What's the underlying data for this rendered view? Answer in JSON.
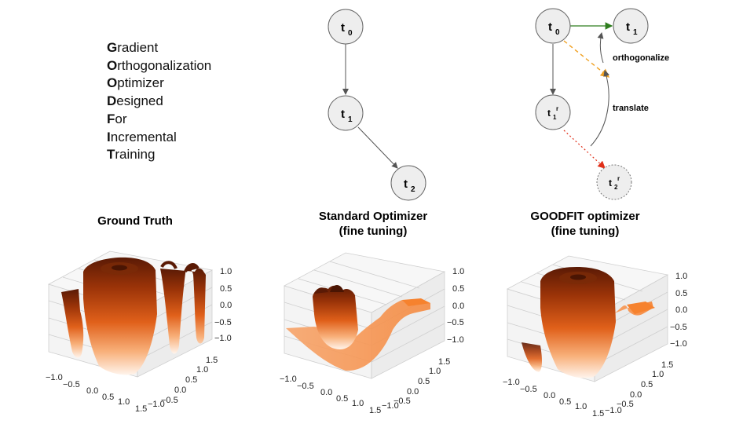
{
  "acronym": [
    {
      "initial": "G",
      "rest": "radient"
    },
    {
      "initial": "O",
      "rest": "rthogonalization"
    },
    {
      "initial": "O",
      "rest": "ptimizer"
    },
    {
      "initial": "D",
      "rest": "esigned"
    },
    {
      "initial": "F",
      "rest": "or"
    },
    {
      "initial": "I",
      "rest": "ncremental"
    },
    {
      "initial": "T",
      "rest": "raining"
    }
  ],
  "diagram_standard": {
    "nodes": [
      {
        "base": "t",
        "sub": "0",
        "sup": ""
      },
      {
        "base": "t",
        "sub": "1",
        "sup": ""
      },
      {
        "base": "t",
        "sub": "2",
        "sup": ""
      }
    ]
  },
  "diagram_goodfit": {
    "nodes": [
      {
        "base": "t",
        "sub": "0",
        "sup": ""
      },
      {
        "base": "t",
        "sub": "1",
        "sup": ""
      },
      {
        "base": "t",
        "sub": "1",
        "sup": "r"
      },
      {
        "base": "t",
        "sub": "2",
        "sup": "r"
      }
    ],
    "labels": {
      "orthogonalize": "orthogonalize",
      "translate": "translate"
    },
    "colors": {
      "green_arrow": "#2e7d1e",
      "orange_arrow": "#f0a020",
      "red_arrow": "#e0301a"
    }
  },
  "plots": [
    {
      "title_lines": [
        "Ground Truth"
      ]
    },
    {
      "title_lines": [
        "Standard Optimizer",
        "(fine tuning)"
      ]
    },
    {
      "title_lines": [
        "GOODFIT optimizer",
        "(fine tuning)"
      ]
    }
  ],
  "axes": {
    "z_ticks": [
      "1.0",
      "0.5",
      "0.0",
      "−0.5",
      "−1.0"
    ],
    "x_ticks": [
      "−1.0",
      "−0.5",
      "0.0",
      "0.5",
      "1.0",
      "1.5"
    ],
    "y_ticks": [
      "1.5",
      "1.0",
      "0.5",
      "0.0",
      "−0.5",
      "−1.0"
    ]
  },
  "colors": {
    "surface_dark": "#5a1a05",
    "surface_mid": "#e0601a",
    "surface_light": "#fff1e6",
    "node_fill": "#eeeeee",
    "node_stroke": "#666666"
  }
}
